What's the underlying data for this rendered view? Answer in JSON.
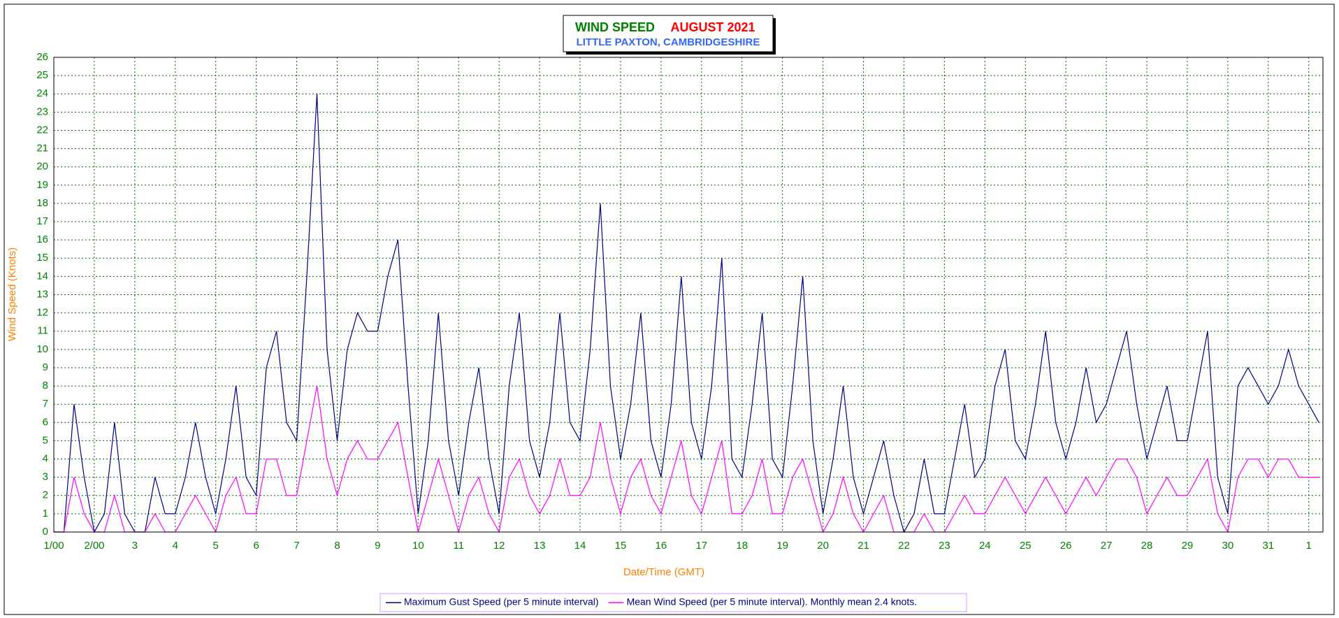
{
  "chart_data": {
    "type": "line",
    "title": "WIND SPEED",
    "title_date": "AUGUST 2021",
    "subtitle": "LITTLE PAXTON, CAMBRIDGESHIRE",
    "xlabel": "Date/Time (GMT)",
    "ylabel": "Wind Speed (Knots)",
    "x": [
      0,
      0.25,
      0.5,
      0.75,
      1,
      1.25,
      1.5,
      1.75,
      2,
      2.25,
      2.5,
      2.75,
      3,
      3.25,
      3.5,
      3.75,
      4,
      4.25,
      4.5,
      4.75,
      5,
      5.25,
      5.5,
      5.75,
      6,
      6.25,
      6.5,
      6.75,
      7,
      7.25,
      7.5,
      7.75,
      8,
      8.25,
      8.5,
      8.75,
      9,
      9.25,
      9.5,
      9.75,
      10,
      10.25,
      10.5,
      10.75,
      11,
      11.25,
      11.5,
      11.75,
      12,
      12.25,
      12.5,
      12.75,
      13,
      13.25,
      13.5,
      13.75,
      14,
      14.25,
      14.5,
      14.75,
      15,
      15.25,
      15.5,
      15.75,
      16,
      16.25,
      16.5,
      16.75,
      17,
      17.25,
      17.5,
      17.75,
      18,
      18.25,
      18.5,
      18.75,
      19,
      19.25,
      19.5,
      19.75,
      20,
      20.25,
      20.5,
      20.75,
      21,
      21.25,
      21.5,
      21.75,
      22,
      22.25,
      22.5,
      22.75,
      23,
      23.25,
      23.5,
      23.75,
      24,
      24.25,
      24.5,
      24.75,
      25,
      25.25,
      25.5,
      25.75,
      26,
      26.25,
      26.5,
      26.75,
      27,
      27.25,
      27.5,
      27.75,
      28,
      28.25,
      28.5,
      28.75,
      29,
      29.25,
      29.5,
      29.75,
      30,
      30.25,
      30.5,
      30.75,
      31,
      31.25
    ],
    "series": [
      {
        "name": "Maximum Gust Speed (per 5 minute interval)",
        "color": "#000080",
        "values": [
          0,
          0,
          7,
          3,
          0,
          1,
          6,
          1,
          0,
          0,
          3,
          1,
          1,
          3,
          6,
          3,
          1,
          4,
          8,
          3,
          2,
          9,
          11,
          6,
          5,
          14,
          24,
          10,
          5,
          10,
          12,
          11,
          11,
          14,
          16,
          8,
          1,
          5,
          12,
          5,
          2,
          6,
          9,
          4,
          1,
          8,
          12,
          5,
          3,
          6,
          12,
          6,
          5,
          10,
          18,
          8,
          4,
          7,
          12,
          5,
          3,
          7,
          14,
          6,
          4,
          8,
          15,
          4,
          3,
          7,
          12,
          4,
          3,
          8,
          14,
          5,
          1,
          4,
          8,
          3,
          1,
          3,
          5,
          2,
          0,
          1,
          4,
          1,
          1,
          4,
          7,
          3,
          4,
          8,
          10,
          5,
          4,
          7,
          11,
          6,
          4,
          6,
          9,
          6,
          7,
          9,
          11,
          7,
          4,
          6,
          8,
          5,
          5,
          8,
          11,
          3,
          1,
          8,
          9,
          8,
          7,
          8,
          10,
          8,
          7,
          6
        ]
      },
      {
        "name": "Mean Wind Speed (per 5 minute interval). Monthly mean 2.4 knots.",
        "color": "#ff00ff",
        "values": [
          0,
          0,
          3,
          1,
          0,
          0,
          2,
          0,
          0,
          0,
          1,
          0,
          0,
          1,
          2,
          1,
          0,
          2,
          3,
          1,
          1,
          4,
          4,
          2,
          2,
          5,
          8,
          4,
          2,
          4,
          5,
          4,
          4,
          5,
          6,
          3,
          0,
          2,
          4,
          2,
          0,
          2,
          3,
          1,
          0,
          3,
          4,
          2,
          1,
          2,
          4,
          2,
          2,
          3,
          6,
          3,
          1,
          3,
          4,
          2,
          1,
          3,
          5,
          2,
          1,
          3,
          5,
          1,
          1,
          2,
          4,
          1,
          1,
          3,
          4,
          2,
          0,
          1,
          3,
          1,
          0,
          1,
          2,
          0,
          0,
          0,
          1,
          0,
          0,
          1,
          2,
          1,
          1,
          2,
          3,
          2,
          1,
          2,
          3,
          2,
          1,
          2,
          3,
          2,
          3,
          4,
          4,
          3,
          1,
          2,
          3,
          2,
          2,
          3,
          4,
          1,
          0,
          3,
          4,
          4,
          3,
          4,
          4,
          3,
          3,
          3
        ]
      }
    ],
    "xlim": [
      0,
      31.35
    ],
    "xticks": [
      {
        "value": 0,
        "label": "1/00"
      },
      {
        "value": 1,
        "label": "2/00"
      },
      {
        "value": 2,
        "label": "3"
      },
      {
        "value": 3,
        "label": "4"
      },
      {
        "value": 4,
        "label": "5"
      },
      {
        "value": 5,
        "label": "6"
      },
      {
        "value": 6,
        "label": "7"
      },
      {
        "value": 7,
        "label": "8"
      },
      {
        "value": 8,
        "label": "9"
      },
      {
        "value": 9,
        "label": "10"
      },
      {
        "value": 10,
        "label": "11"
      },
      {
        "value": 11,
        "label": "12"
      },
      {
        "value": 12,
        "label": "13"
      },
      {
        "value": 13,
        "label": "14"
      },
      {
        "value": 14,
        "label": "15"
      },
      {
        "value": 15,
        "label": "16"
      },
      {
        "value": 16,
        "label": "17"
      },
      {
        "value": 17,
        "label": "18"
      },
      {
        "value": 18,
        "label": "19"
      },
      {
        "value": 19,
        "label": "20"
      },
      {
        "value": 20,
        "label": "21"
      },
      {
        "value": 21,
        "label": "22"
      },
      {
        "value": 22,
        "label": "23"
      },
      {
        "value": 23,
        "label": "24"
      },
      {
        "value": 24,
        "label": "25"
      },
      {
        "value": 25,
        "label": "26"
      },
      {
        "value": 26,
        "label": "27"
      },
      {
        "value": 27,
        "label": "28"
      },
      {
        "value": 28,
        "label": "29"
      },
      {
        "value": 29,
        "label": "30"
      },
      {
        "value": 30,
        "label": "31"
      },
      {
        "value": 31,
        "label": "1"
      }
    ],
    "ylim": [
      0,
      26
    ],
    "yticks": [
      0,
      1,
      2,
      3,
      4,
      5,
      6,
      7,
      8,
      9,
      10,
      11,
      12,
      13,
      14,
      15,
      16,
      17,
      18,
      19,
      20,
      21,
      22,
      23,
      24,
      25,
      26
    ],
    "grid": true,
    "legend": "bottom"
  }
}
